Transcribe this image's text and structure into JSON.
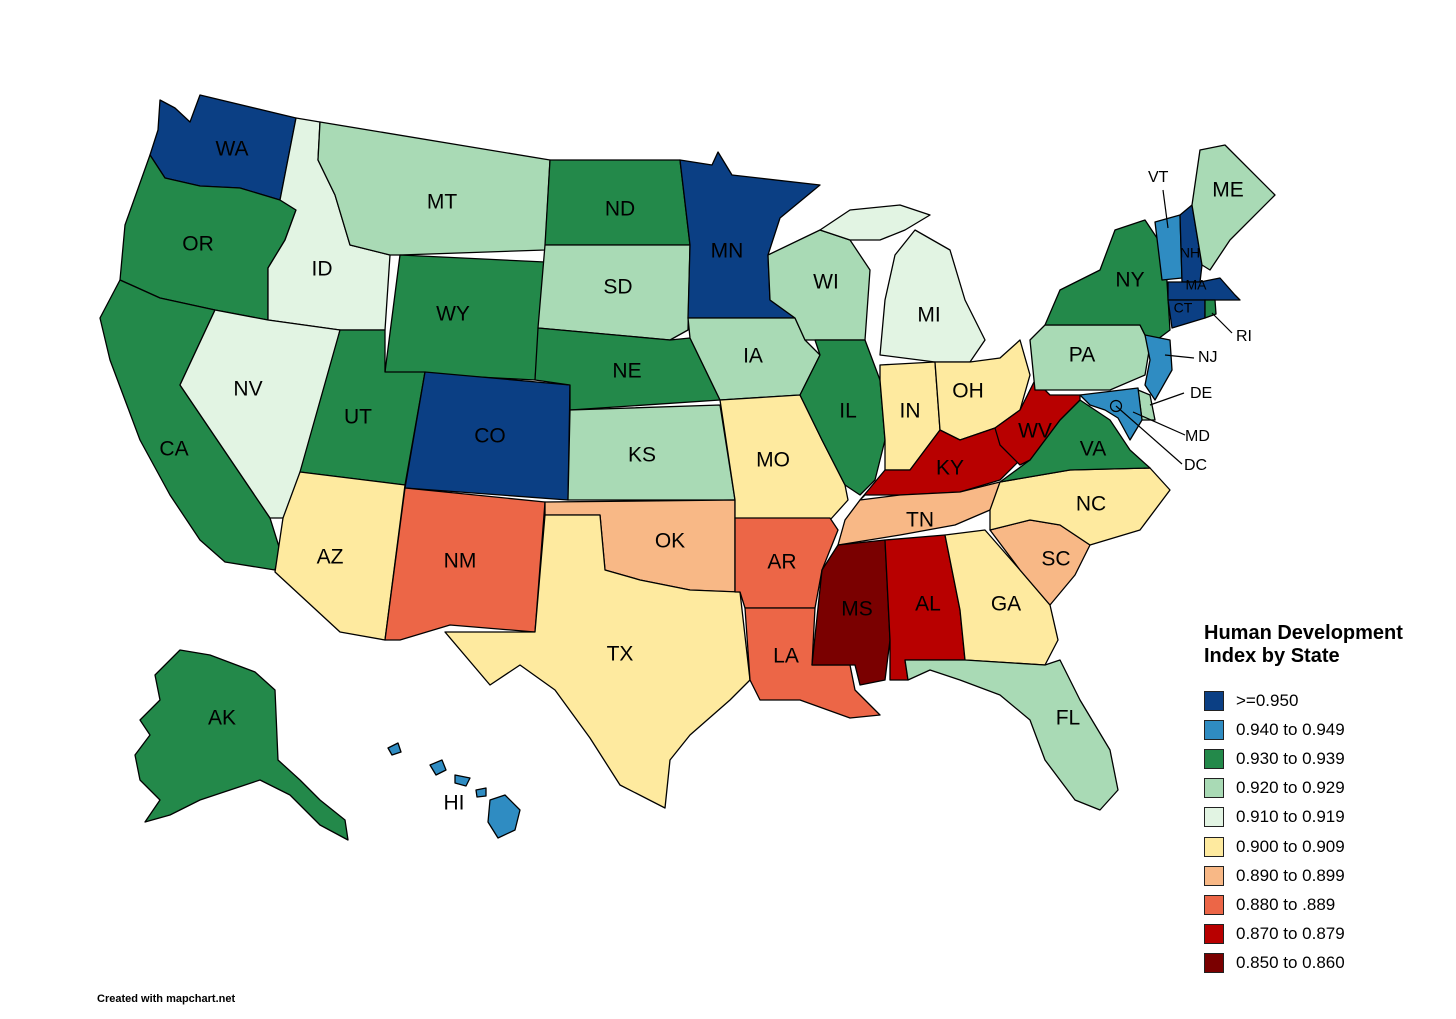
{
  "legend": {
    "title_line1": "Human Development",
    "title_line2": "Index by State",
    "classes": [
      {
        "label": ">=0.950",
        "color": "#0b3f84"
      },
      {
        "label": "0.940 to 0.949",
        "color": "#2f8cc2"
      },
      {
        "label": "0.930 to 0.939",
        "color": "#23894a"
      },
      {
        "label": "0.920 to 0.929",
        "color": "#a9dab5"
      },
      {
        "label": "0.910 to 0.919",
        "color": "#e2f4e3"
      },
      {
        "label": "0.900 to 0.909",
        "color": "#feea9f"
      },
      {
        "label": "0.890 to 0.899",
        "color": "#f8b886"
      },
      {
        "label": "0.880 to .889",
        "color": "#ec6647"
      },
      {
        "label": "0.870 to 0.879",
        "color": "#b80000"
      },
      {
        "label": "0.850 to 0.860",
        "color": "#7a0000"
      }
    ]
  },
  "states": {
    "WA": {
      "label": "WA",
      "class": 0
    },
    "OR": {
      "label": "OR",
      "class": 2
    },
    "CA": {
      "label": "CA",
      "class": 2
    },
    "ID": {
      "label": "ID",
      "class": 4
    },
    "NV": {
      "label": "NV",
      "class": 4
    },
    "MT": {
      "label": "MT",
      "class": 3
    },
    "WY": {
      "label": "WY",
      "class": 2
    },
    "UT": {
      "label": "UT",
      "class": 2
    },
    "AZ": {
      "label": "AZ",
      "class": 5
    },
    "CO": {
      "label": "CO",
      "class": 0
    },
    "NM": {
      "label": "NM",
      "class": 7
    },
    "ND": {
      "label": "ND",
      "class": 2
    },
    "SD": {
      "label": "SD",
      "class": 3
    },
    "NE": {
      "label": "NE",
      "class": 2
    },
    "KS": {
      "label": "KS",
      "class": 3
    },
    "OK": {
      "label": "OK",
      "class": 6
    },
    "TX": {
      "label": "TX",
      "class": 5
    },
    "MN": {
      "label": "MN",
      "class": 0
    },
    "IA": {
      "label": "IA",
      "class": 3
    },
    "MO": {
      "label": "MO",
      "class": 5
    },
    "AR": {
      "label": "AR",
      "class": 7
    },
    "LA": {
      "label": "LA",
      "class": 7
    },
    "WI": {
      "label": "WI",
      "class": 3
    },
    "IL": {
      "label": "IL",
      "class": 2
    },
    "MI": {
      "label": "MI",
      "class": 4
    },
    "IN": {
      "label": "IN",
      "class": 5
    },
    "OH": {
      "label": "OH",
      "class": 5
    },
    "KY": {
      "label": "KY",
      "class": 8
    },
    "TN": {
      "label": "TN",
      "class": 6
    },
    "MS": {
      "label": "MS",
      "class": 9
    },
    "AL": {
      "label": "AL",
      "class": 8
    },
    "GA": {
      "label": "GA",
      "class": 5
    },
    "FL": {
      "label": "FL",
      "class": 3
    },
    "SC": {
      "label": "SC",
      "class": 6
    },
    "NC": {
      "label": "NC",
      "class": 5
    },
    "VA": {
      "label": "VA",
      "class": 2
    },
    "WV": {
      "label": "WV",
      "class": 8
    },
    "PA": {
      "label": "PA",
      "class": 3
    },
    "NY": {
      "label": "NY",
      "class": 2
    },
    "NJ": {
      "label": "NJ",
      "class": 1
    },
    "DE": {
      "label": "DE",
      "class": 3
    },
    "MD": {
      "label": "MD",
      "class": 1
    },
    "DC": {
      "label": "DC",
      "class": 1
    },
    "CT": {
      "label": "CT",
      "class": 0
    },
    "RI": {
      "label": "RI",
      "class": 2
    },
    "MA": {
      "label": "MA",
      "class": 0
    },
    "VT": {
      "label": "VT",
      "class": 1
    },
    "NH": {
      "label": "NH",
      "class": 0
    },
    "ME": {
      "label": "ME",
      "class": 3
    },
    "AK": {
      "label": "AK",
      "class": 2
    },
    "HI": {
      "label": "HI",
      "class": 1
    }
  },
  "credit": "Created with mapchart.net"
}
